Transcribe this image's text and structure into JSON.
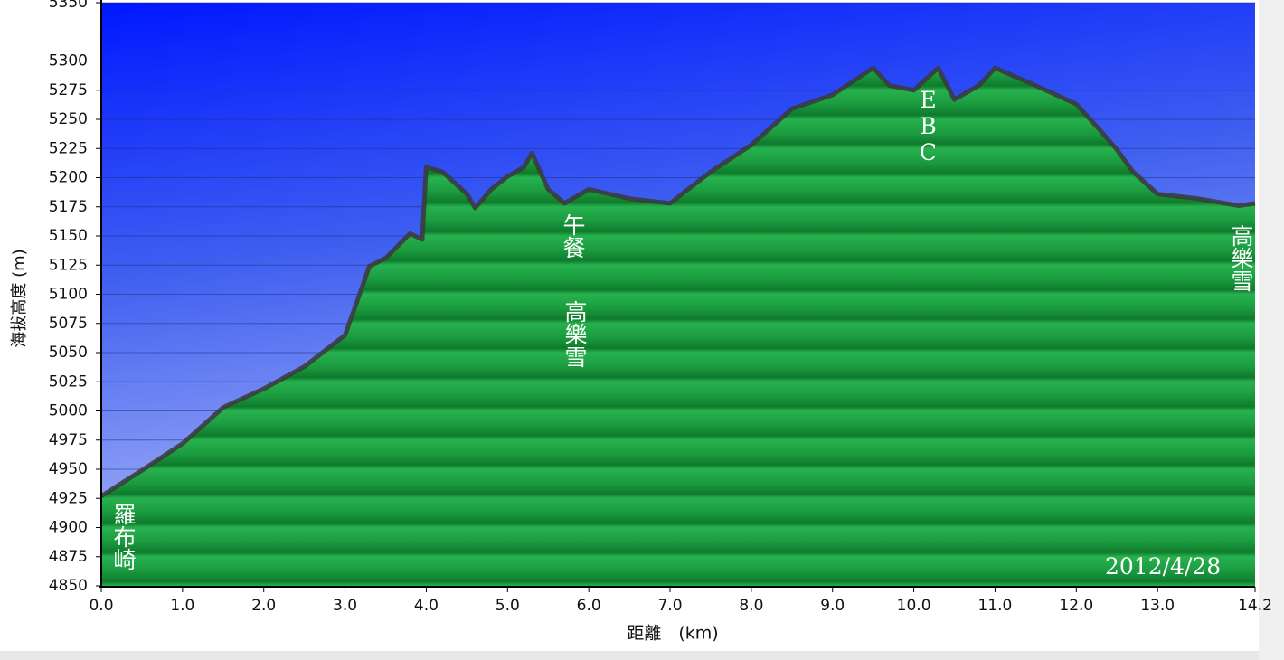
{
  "chart_data": {
    "type": "area",
    "y_label": "海拔高度 (m)",
    "x_label": "距離　(km)",
    "x": [
      0,
      0.5,
      1.0,
      1.5,
      2.0,
      2.5,
      3.0,
      3.2,
      3.3,
      3.5,
      3.8,
      3.95,
      4.0,
      4.2,
      4.5,
      4.6,
      4.8,
      5.0,
      5.2,
      5.3,
      5.5,
      5.7,
      6.0,
      6.5,
      7.0,
      7.5,
      8.0,
      8.5,
      9.0,
      9.5,
      9.7,
      10.0,
      10.3,
      10.5,
      10.8,
      11.0,
      11.5,
      12.0,
      12.3,
      12.5,
      12.7,
      13.0,
      13.5,
      14.0,
      14.2
    ],
    "values": [
      4927,
      4949,
      4972,
      5003,
      5019,
      5038,
      5065,
      5104,
      5124,
      5131,
      5152,
      5147,
      5209,
      5205,
      5186,
      5174,
      5190,
      5201,
      5209,
      5221,
      5190,
      5178,
      5190,
      5182,
      5178,
      5205,
      5228,
      5259,
      5271,
      5294,
      5279,
      5275,
      5294,
      5267,
      5279,
      5294,
      5279,
      5263,
      5240,
      5224,
      5205,
      5186,
      5182,
      5176,
      5178
    ],
    "fill": "#1fa847",
    "line_color": "#3a3a3a",
    "xlim": [
      0,
      14.2
    ],
    "ylim": [
      4850,
      5350
    ],
    "xticks": [
      {
        "value": 0,
        "label": "0.0"
      },
      {
        "value": 1,
        "label": "1.0"
      },
      {
        "value": 2,
        "label": "2.0"
      },
      {
        "value": 3,
        "label": "3.0"
      },
      {
        "value": 4,
        "label": "4.0"
      },
      {
        "value": 5,
        "label": "5.0"
      },
      {
        "value": 6,
        "label": "6.0"
      },
      {
        "value": 7,
        "label": "7.0"
      },
      {
        "value": 8,
        "label": "8.0"
      },
      {
        "value": 9,
        "label": "9.0"
      },
      {
        "value": 10,
        "label": "10.0"
      },
      {
        "value": 11,
        "label": "11.0"
      },
      {
        "value": 12,
        "label": "12.0"
      },
      {
        "value": 13,
        "label": "13.0"
      },
      14.2
    ],
    "yticks": [
      4850,
      4875,
      4900,
      4925,
      4950,
      4975,
      5000,
      5025,
      5050,
      5075,
      5100,
      5125,
      5150,
      5175,
      5200,
      5225,
      5250,
      5275,
      5300,
      5350
    ],
    "grid": true,
    "annotations": [
      "羅布崎",
      "午餐",
      "高樂雪",
      "EBC",
      "高樂雪",
      "2012/4/28"
    ]
  }
}
